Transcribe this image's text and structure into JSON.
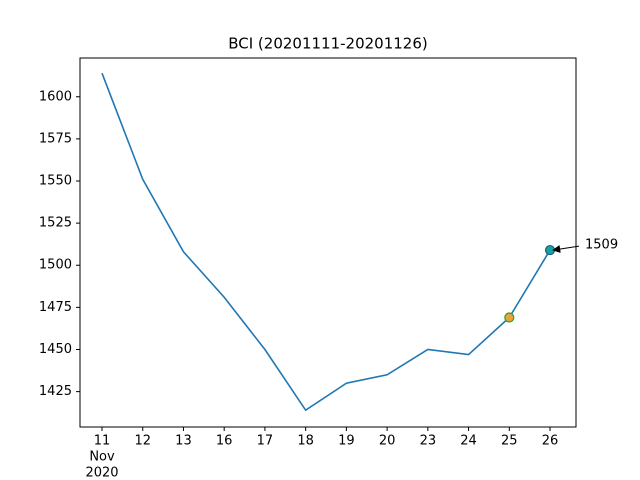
{
  "chart_data": {
    "type": "line",
    "title": "BCI (20201111-20201126)",
    "categories": [
      "11",
      "12",
      "13",
      "16",
      "17",
      "18",
      "19",
      "20",
      "23",
      "24",
      "25",
      "26"
    ],
    "month_label": "Nov",
    "year_label": "2020",
    "values": [
      1614,
      1551,
      1508,
      1481,
      1450,
      1414,
      1430,
      1435,
      1450,
      1447,
      1469,
      1509
    ],
    "color": "#1f77b4",
    "highlight_points": [
      {
        "index": 10,
        "color": "#e8a33c",
        "edge": "#2ca02c"
      },
      {
        "index": 11,
        "color": "#17a2a2",
        "edge": "#1f5f7f"
      }
    ],
    "annotation_index": 11,
    "ylim": [
      1404,
      1623
    ],
    "yticks": [
      1425,
      1450,
      1475,
      1500,
      1525,
      1550,
      1575,
      1600
    ],
    "grid": false
  }
}
